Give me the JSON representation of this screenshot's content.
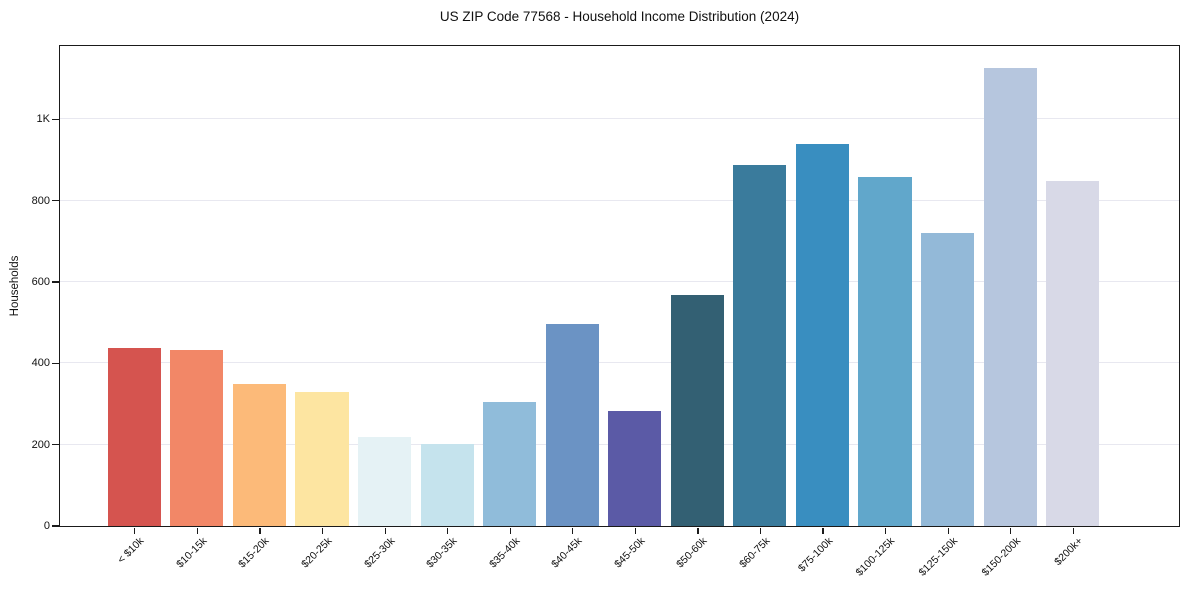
{
  "chart_data": {
    "type": "bar",
    "title": "US ZIP Code 77568 - Household Income Distribution (2024)",
    "xlabel": "",
    "ylabel": "Households",
    "categories": [
      "< $10k",
      "$10-15k",
      "$15-20k",
      "$20-25k",
      "$25-30k",
      "$30-35k",
      "$35-40k",
      "$40-45k",
      "$45-50k",
      "$50-60k",
      "$60-75k",
      "$75-100k",
      "$100-125k",
      "$125-150k",
      "$150-200k",
      "$200k+"
    ],
    "values": [
      437,
      432,
      348,
      330,
      219,
      202,
      304,
      496,
      283,
      569,
      887,
      939,
      857,
      721,
      1126,
      848
    ],
    "bar_colors": [
      "#d5544f",
      "#f28767",
      "#fcba79",
      "#fde5a1",
      "#e5f2f5",
      "#c5e3ed",
      "#90bcda",
      "#6b93c4",
      "#5b5aa6",
      "#336073",
      "#3a7b9c",
      "#398ec0",
      "#61a7cb",
      "#93b9d8",
      "#b6c6de",
      "#d8d9e7"
    ],
    "ylim": [
      0,
      1180
    ],
    "yticks": [
      {
        "label": "0",
        "value": 0
      },
      {
        "label": "200",
        "value": 200
      },
      {
        "label": "400",
        "value": 400
      },
      {
        "label": "600",
        "value": 600
      },
      {
        "label": "800",
        "value": 800
      },
      {
        "label": "1K",
        "value": 1000
      }
    ],
    "grid": "horizontal",
    "grid_color": "#e8e8f0",
    "axis_color": "#1a1a1a",
    "legend": "none",
    "bar_label_rotation_deg": 45
  }
}
